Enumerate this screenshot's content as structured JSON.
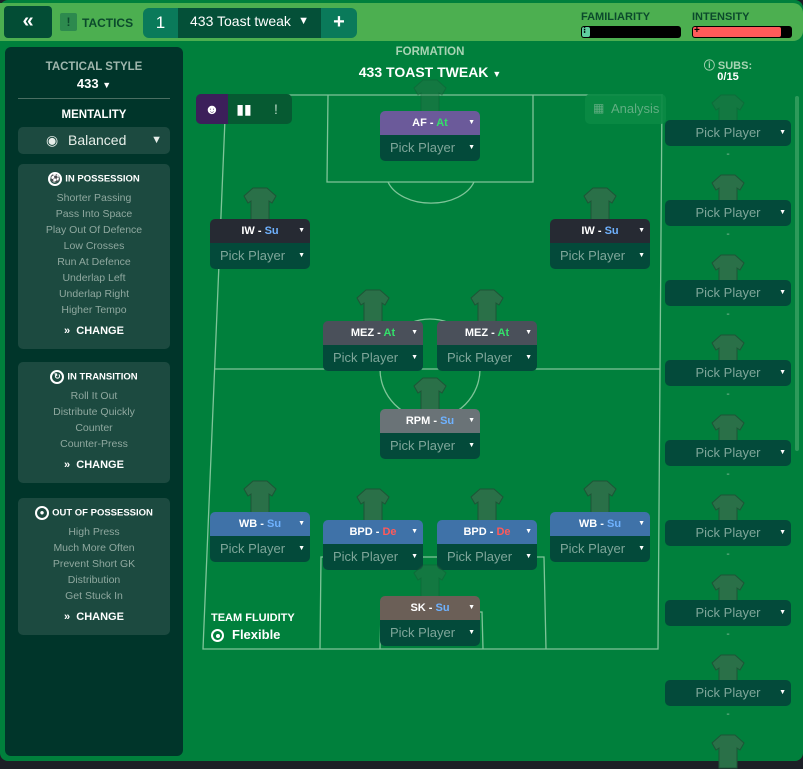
{
  "header": {
    "back_icon": "double-chevron-left",
    "tactics_label": "TACTICS",
    "tab_number": "1",
    "tactic_name": "433 Toast tweak",
    "add_label": "+",
    "familiarity": {
      "label": "FAMILIARITY",
      "value": 0.08,
      "color": "#5fcfa0"
    },
    "intensity": {
      "label": "INTENSITY",
      "value": 0.9,
      "color": "#ff5a5a"
    }
  },
  "sidebar": {
    "style_label": "TACTICAL STYLE",
    "style_value": "433",
    "mentality_label": "MENTALITY",
    "mentality_value": "Balanced",
    "sections": [
      {
        "title": "IN POSSESSION",
        "items": [
          "Shorter Passing",
          "Pass Into Space",
          "Play Out Of Defence",
          "Low Crosses",
          "Run At Defence",
          "Underlap Left",
          "Underlap Right",
          "Higher Tempo"
        ],
        "change": "CHANGE"
      },
      {
        "title": "IN TRANSITION",
        "items": [
          "Roll It Out",
          "Distribute Quickly",
          "Counter",
          "Counter-Press"
        ],
        "change": "CHANGE"
      },
      {
        "title": "OUT OF POSSESSION",
        "items": [
          "High Press",
          "Much More Often",
          "Prevent Short GK",
          "Distribution",
          "Get Stuck In"
        ],
        "change": "CHANGE"
      }
    ]
  },
  "formation": {
    "label": "FORMATION",
    "value": "433 TOAST TWEAK",
    "analysis": "Analysis"
  },
  "players": [
    {
      "role": "AF",
      "duty": "At",
      "pick": "Pick Player",
      "color": "#6b5a9a"
    },
    {
      "role": "IW",
      "duty": "Su",
      "pick": "Pick Player",
      "color": "#262a33"
    },
    {
      "role": "IW",
      "duty": "Su",
      "pick": "Pick Player",
      "color": "#262a33"
    },
    {
      "role": "MEZ",
      "duty": "At",
      "pick": "Pick Player",
      "color": "#4a505a"
    },
    {
      "role": "MEZ",
      "duty": "At",
      "pick": "Pick Player",
      "color": "#4a505a"
    },
    {
      "role": "RPM",
      "duty": "Su",
      "pick": "Pick Player",
      "color": "#6a7377"
    },
    {
      "role": "WB",
      "duty": "Su",
      "pick": "Pick Player",
      "color": "#3f72a8"
    },
    {
      "role": "BPD",
      "duty": "De",
      "pick": "Pick Player",
      "color": "#3f72a8"
    },
    {
      "role": "BPD",
      "duty": "De",
      "pick": "Pick Player",
      "color": "#3f72a8"
    },
    {
      "role": "WB",
      "duty": "Su",
      "pick": "Pick Player",
      "color": "#3f72a8"
    },
    {
      "role": "SK",
      "duty": "Su",
      "pick": "Pick Player",
      "color": "#6b5f57"
    }
  ],
  "fluidity": {
    "label": "TEAM FLUIDITY",
    "value": "Flexible"
  },
  "subs": {
    "label": "SUBS:",
    "count": "0/15",
    "items": [
      "Pick Player",
      "Pick Player",
      "Pick Player",
      "Pick Player",
      "Pick Player",
      "Pick Player",
      "Pick Player",
      "Pick Player"
    ],
    "dash": "-"
  }
}
